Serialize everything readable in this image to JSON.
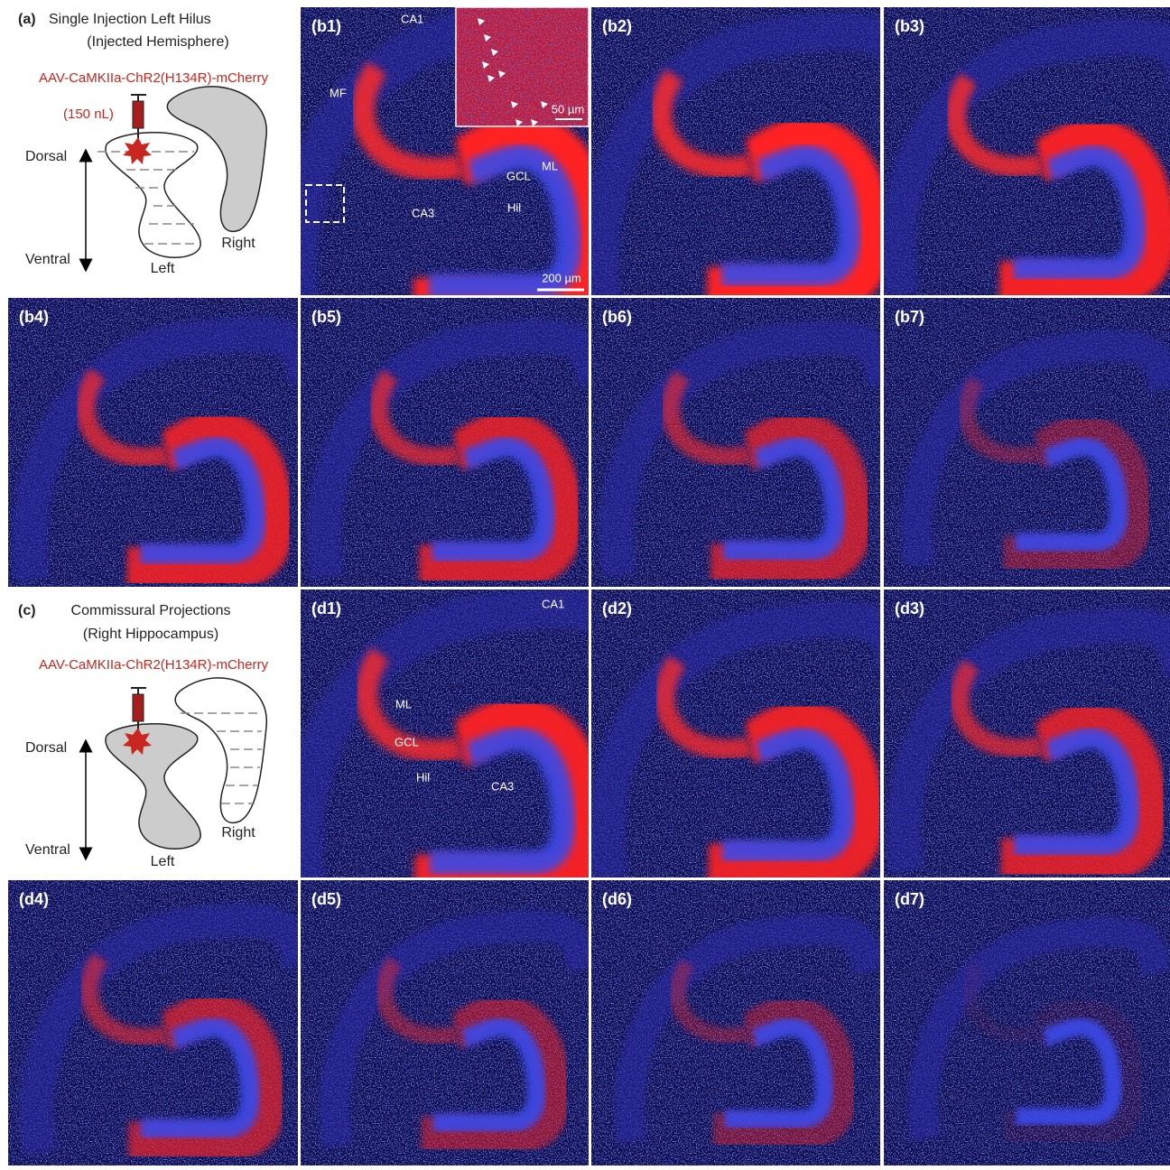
{
  "schematics": [
    {
      "label": "(a)",
      "title": "Single Injection Left Hilus",
      "subtitle": "(Injected Hemisphere)",
      "virus": "AAV-CaMKIIa-ChR2(H134R)-mCherry",
      "volume": "(150 nL)",
      "dorsal": "Dorsal",
      "ventral": "Ventral",
      "left": "Left",
      "right": "Right"
    },
    {
      "label": "(c)",
      "title": "Commissural Projections",
      "subtitle": "(Right Hippocampus)",
      "virus": "AAV-CaMKIIa-ChR2(H134R)-mCherry",
      "dorsal": "Dorsal",
      "ventral": "Ventral",
      "left": "Left",
      "right": "Right"
    }
  ],
  "images": [
    {
      "label": "(b1)",
      "annotations": [
        "CA1",
        "MF",
        "GCL",
        "ML",
        "Hil",
        "CA3"
      ],
      "scale_bars": [
        "50 µm",
        "200 µm"
      ]
    },
    {
      "label": "(b2)"
    },
    {
      "label": "(b3)"
    },
    {
      "label": "(b4)"
    },
    {
      "label": "(b5)"
    },
    {
      "label": "(b6)"
    },
    {
      "label": "(b7)"
    },
    {
      "label": "(d1)",
      "annotations": [
        "CA1",
        "ML",
        "GCL",
        "Hil",
        "CA3"
      ]
    },
    {
      "label": "(d2)"
    },
    {
      "label": "(d3)"
    },
    {
      "label": "(d4)"
    },
    {
      "label": "(d5)"
    },
    {
      "label": "(d6)"
    },
    {
      "label": "(d7)"
    }
  ]
}
